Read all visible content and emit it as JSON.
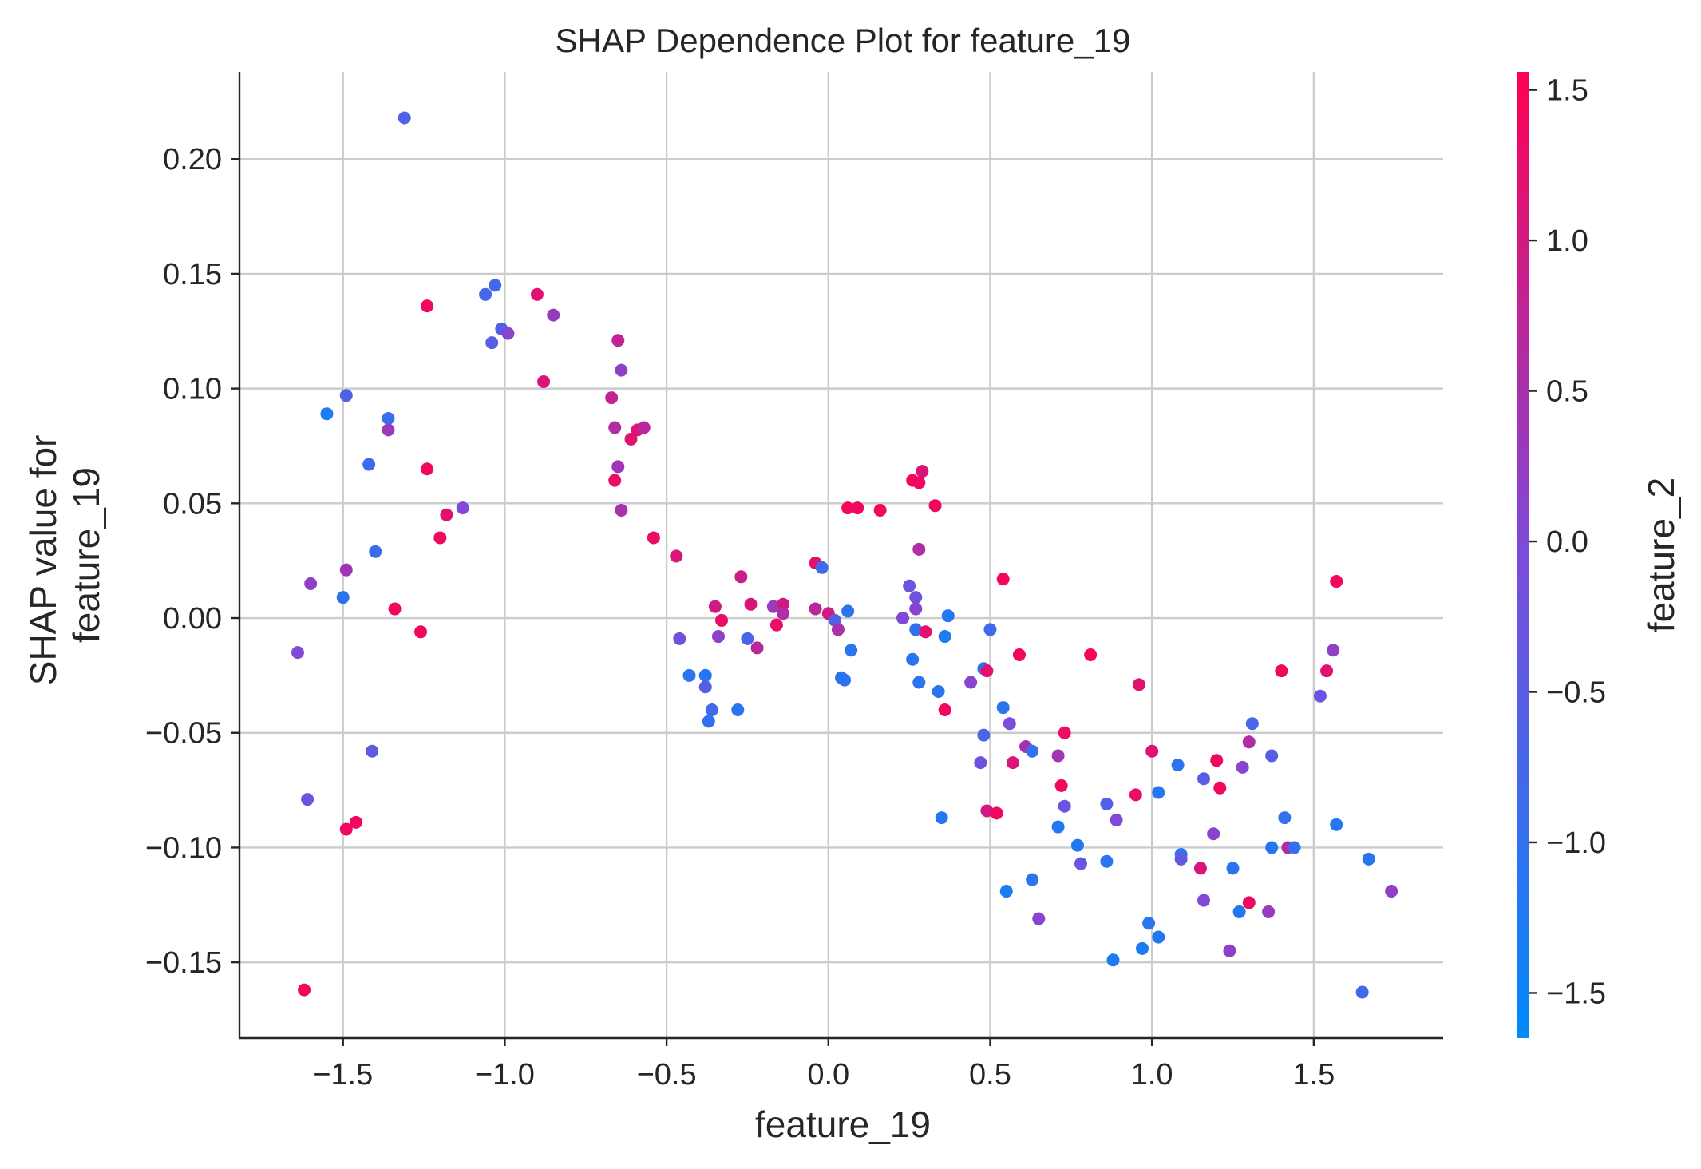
{
  "chart_data": {
    "type": "scatter",
    "title": "SHAP Dependence Plot for feature_19",
    "xlabel": "feature_19",
    "ylabel": [
      "SHAP value for",
      "feature_19"
    ],
    "xlim": [
      -1.82,
      1.9
    ],
    "ylim": [
      -0.183,
      0.238
    ],
    "xticks": [
      -1.5,
      -1.0,
      -0.5,
      0.0,
      0.5,
      1.0,
      1.5
    ],
    "xtick_labels": [
      "−1.5",
      "−1.0",
      "−0.5",
      "0.0",
      "0.5",
      "1.0",
      "1.5"
    ],
    "yticks": [
      -0.15,
      -0.1,
      -0.05,
      0.0,
      0.05,
      0.1,
      0.15,
      0.2
    ],
    "ytick_labels": [
      "−0.15",
      "−0.10",
      "−0.05",
      "0.00",
      "0.05",
      "0.10",
      "0.15",
      "0.20"
    ],
    "grid": true,
    "colorbar": {
      "label": "feature_2",
      "range": [
        -1.65,
        1.56
      ],
      "ticks": [
        -1.5,
        -1.0,
        -0.5,
        0.0,
        0.5,
        1.0,
        1.5
      ],
      "tick_labels": [
        "−1.5",
        "−1.0",
        "−0.5",
        "0.0",
        "0.5",
        "1.0",
        "1.5"
      ],
      "colors": [
        "#008afb",
        "#7c4bdb",
        "#ff0051"
      ]
    },
    "points": [
      {
        "x": -1.31,
        "y": 0.218,
        "c": -0.6
      },
      {
        "x": -1.62,
        "y": -0.162,
        "c": 1.4
      },
      {
        "x": -1.64,
        "y": -0.015,
        "c": 0.0
      },
      {
        "x": -1.61,
        "y": -0.079,
        "c": -0.3
      },
      {
        "x": -1.6,
        "y": 0.015,
        "c": 0.2
      },
      {
        "x": -1.55,
        "y": 0.089,
        "c": -1.3
      },
      {
        "x": -1.5,
        "y": 0.009,
        "c": -1.1
      },
      {
        "x": -1.49,
        "y": 0.097,
        "c": -0.6
      },
      {
        "x": -1.49,
        "y": 0.021,
        "c": 0.4
      },
      {
        "x": -1.49,
        "y": -0.092,
        "c": 1.4
      },
      {
        "x": -1.46,
        "y": -0.089,
        "c": 1.4
      },
      {
        "x": -1.42,
        "y": 0.067,
        "c": -0.8
      },
      {
        "x": -1.41,
        "y": -0.058,
        "c": -0.4
      },
      {
        "x": -1.4,
        "y": 0.029,
        "c": -0.9
      },
      {
        "x": -1.36,
        "y": 0.087,
        "c": -0.9
      },
      {
        "x": -1.36,
        "y": 0.082,
        "c": 0.3
      },
      {
        "x": -1.34,
        "y": 0.004,
        "c": 1.4
      },
      {
        "x": -1.26,
        "y": -0.006,
        "c": 1.4
      },
      {
        "x": -1.24,
        "y": 0.136,
        "c": 1.4
      },
      {
        "x": -1.24,
        "y": 0.065,
        "c": 1.4
      },
      {
        "x": -1.2,
        "y": 0.035,
        "c": 1.4
      },
      {
        "x": -1.18,
        "y": 0.045,
        "c": 1.2
      },
      {
        "x": -1.13,
        "y": 0.048,
        "c": 0.0
      },
      {
        "x": -1.06,
        "y": 0.141,
        "c": -0.8
      },
      {
        "x": -1.04,
        "y": 0.12,
        "c": -0.5
      },
      {
        "x": -1.03,
        "y": 0.145,
        "c": -0.8
      },
      {
        "x": -1.01,
        "y": 0.126,
        "c": -0.6
      },
      {
        "x": -0.99,
        "y": 0.124,
        "c": 0.1
      },
      {
        "x": -0.9,
        "y": 0.141,
        "c": 1.2
      },
      {
        "x": -0.88,
        "y": 0.103,
        "c": 1.1
      },
      {
        "x": -0.85,
        "y": 0.132,
        "c": 0.3
      },
      {
        "x": -0.67,
        "y": 0.096,
        "c": 0.8
      },
      {
        "x": -0.66,
        "y": 0.06,
        "c": 1.3
      },
      {
        "x": -0.66,
        "y": 0.083,
        "c": 0.6
      },
      {
        "x": -0.65,
        "y": 0.121,
        "c": 0.8
      },
      {
        "x": -0.65,
        "y": 0.066,
        "c": 0.4
      },
      {
        "x": -0.64,
        "y": 0.108,
        "c": 0.2
      },
      {
        "x": -0.64,
        "y": 0.047,
        "c": 0.5
      },
      {
        "x": -0.61,
        "y": 0.078,
        "c": 1.2
      },
      {
        "x": -0.59,
        "y": 0.082,
        "c": 1.1
      },
      {
        "x": -0.57,
        "y": 0.083,
        "c": 0.7
      },
      {
        "x": -0.54,
        "y": 0.035,
        "c": 1.3
      },
      {
        "x": -0.47,
        "y": 0.027,
        "c": 1.1
      },
      {
        "x": -0.46,
        "y": -0.009,
        "c": -0.2
      },
      {
        "x": -0.43,
        "y": -0.025,
        "c": -1.1
      },
      {
        "x": -0.38,
        "y": -0.025,
        "c": -1.2
      },
      {
        "x": -0.38,
        "y": -0.03,
        "c": -0.5
      },
      {
        "x": -0.37,
        "y": -0.045,
        "c": -1.0
      },
      {
        "x": -0.36,
        "y": -0.04,
        "c": -0.8
      },
      {
        "x": -0.35,
        "y": 0.005,
        "c": 1.0
      },
      {
        "x": -0.34,
        "y": -0.008,
        "c": 0.2
      },
      {
        "x": -0.33,
        "y": -0.001,
        "c": 1.3
      },
      {
        "x": -0.28,
        "y": -0.04,
        "c": -1.1
      },
      {
        "x": -0.27,
        "y": 0.018,
        "c": 0.9
      },
      {
        "x": -0.25,
        "y": -0.009,
        "c": -0.7
      },
      {
        "x": -0.24,
        "y": 0.006,
        "c": 1.1
      },
      {
        "x": -0.22,
        "y": -0.013,
        "c": 0.7
      },
      {
        "x": -0.17,
        "y": 0.005,
        "c": 0.3
      },
      {
        "x": -0.16,
        "y": -0.003,
        "c": 1.3
      },
      {
        "x": -0.14,
        "y": 0.006,
        "c": 1.0
      },
      {
        "x": -0.14,
        "y": 0.002,
        "c": 0.6
      },
      {
        "x": -0.04,
        "y": 0.004,
        "c": 0.7
      },
      {
        "x": -0.04,
        "y": 0.024,
        "c": 1.2
      },
      {
        "x": -0.02,
        "y": 0.022,
        "c": -0.8
      },
      {
        "x": 0.0,
        "y": 0.002,
        "c": 1.0
      },
      {
        "x": 0.02,
        "y": -0.001,
        "c": -0.6
      },
      {
        "x": 0.03,
        "y": -0.005,
        "c": 0.5
      },
      {
        "x": 0.04,
        "y": -0.026,
        "c": -1.1
      },
      {
        "x": 0.05,
        "y": -0.027,
        "c": -1.1
      },
      {
        "x": 0.06,
        "y": 0.048,
        "c": 1.4
      },
      {
        "x": 0.06,
        "y": 0.003,
        "c": -1.1
      },
      {
        "x": 0.07,
        "y": -0.014,
        "c": -1.1
      },
      {
        "x": 0.09,
        "y": 0.048,
        "c": 1.4
      },
      {
        "x": 0.16,
        "y": 0.047,
        "c": 1.4
      },
      {
        "x": 0.23,
        "y": 0.0,
        "c": 0.0
      },
      {
        "x": 0.25,
        "y": 0.014,
        "c": -0.3
      },
      {
        "x": 0.26,
        "y": -0.018,
        "c": -1.1
      },
      {
        "x": 0.26,
        "y": 0.06,
        "c": 1.4
      },
      {
        "x": 0.27,
        "y": 0.009,
        "c": -0.2
      },
      {
        "x": 0.27,
        "y": 0.004,
        "c": 0.1
      },
      {
        "x": 0.27,
        "y": -0.005,
        "c": -1.0
      },
      {
        "x": 0.28,
        "y": 0.059,
        "c": 1.4
      },
      {
        "x": 0.28,
        "y": 0.03,
        "c": 0.6
      },
      {
        "x": 0.28,
        "y": -0.028,
        "c": -1.1
      },
      {
        "x": 0.29,
        "y": 0.064,
        "c": 1.1
      },
      {
        "x": 0.3,
        "y": -0.006,
        "c": 1.2
      },
      {
        "x": 0.33,
        "y": 0.049,
        "c": 1.4
      },
      {
        "x": 0.34,
        "y": -0.032,
        "c": -1.1
      },
      {
        "x": 0.35,
        "y": -0.087,
        "c": -1.2
      },
      {
        "x": 0.36,
        "y": -0.04,
        "c": 1.4
      },
      {
        "x": 0.36,
        "y": -0.008,
        "c": -1.3
      },
      {
        "x": 0.37,
        "y": 0.001,
        "c": -1.2
      },
      {
        "x": 0.44,
        "y": -0.028,
        "c": 0.1
      },
      {
        "x": 0.47,
        "y": -0.063,
        "c": -0.2
      },
      {
        "x": 0.48,
        "y": -0.022,
        "c": -1.1
      },
      {
        "x": 0.48,
        "y": -0.051,
        "c": -0.7
      },
      {
        "x": 0.49,
        "y": -0.023,
        "c": 1.2
      },
      {
        "x": 0.49,
        "y": -0.084,
        "c": 1.0
      },
      {
        "x": 0.5,
        "y": -0.005,
        "c": -0.8
      },
      {
        "x": 0.52,
        "y": -0.085,
        "c": 1.4
      },
      {
        "x": 0.54,
        "y": 0.017,
        "c": 1.4
      },
      {
        "x": 0.54,
        "y": -0.039,
        "c": -1.1
      },
      {
        "x": 0.55,
        "y": -0.119,
        "c": -1.3
      },
      {
        "x": 0.56,
        "y": -0.046,
        "c": -0.1
      },
      {
        "x": 0.57,
        "y": -0.063,
        "c": 1.1
      },
      {
        "x": 0.59,
        "y": -0.016,
        "c": 1.4
      },
      {
        "x": 0.61,
        "y": -0.056,
        "c": 0.5
      },
      {
        "x": 0.63,
        "y": -0.058,
        "c": -1.0
      },
      {
        "x": 0.63,
        "y": -0.114,
        "c": -1.1
      },
      {
        "x": 0.65,
        "y": -0.131,
        "c": 0.1
      },
      {
        "x": 0.71,
        "y": -0.06,
        "c": 0.4
      },
      {
        "x": 0.71,
        "y": -0.091,
        "c": -1.2
      },
      {
        "x": 0.72,
        "y": -0.073,
        "c": 1.4
      },
      {
        "x": 0.73,
        "y": -0.05,
        "c": 1.3
      },
      {
        "x": 0.73,
        "y": -0.082,
        "c": -0.3
      },
      {
        "x": 0.77,
        "y": -0.099,
        "c": -1.2
      },
      {
        "x": 0.78,
        "y": -0.107,
        "c": -0.3
      },
      {
        "x": 0.81,
        "y": -0.016,
        "c": 1.4
      },
      {
        "x": 0.86,
        "y": -0.081,
        "c": -0.6
      },
      {
        "x": 0.86,
        "y": -0.106,
        "c": -1.1
      },
      {
        "x": 0.88,
        "y": -0.149,
        "c": -1.3
      },
      {
        "x": 0.89,
        "y": -0.088,
        "c": 0.0
      },
      {
        "x": 0.95,
        "y": -0.077,
        "c": 1.3
      },
      {
        "x": 0.96,
        "y": -0.029,
        "c": 1.2
      },
      {
        "x": 0.97,
        "y": -0.144,
        "c": -1.3
      },
      {
        "x": 0.99,
        "y": -0.133,
        "c": -1.1
      },
      {
        "x": 1.0,
        "y": -0.058,
        "c": 1.2
      },
      {
        "x": 1.02,
        "y": -0.139,
        "c": -1.2
      },
      {
        "x": 1.02,
        "y": -0.076,
        "c": -1.2
      },
      {
        "x": 1.08,
        "y": -0.064,
        "c": -1.1
      },
      {
        "x": 1.09,
        "y": -0.103,
        "c": -1.1
      },
      {
        "x": 1.09,
        "y": -0.105,
        "c": -0.4
      },
      {
        "x": 1.15,
        "y": -0.109,
        "c": 1.1
      },
      {
        "x": 1.16,
        "y": -0.07,
        "c": -0.5
      },
      {
        "x": 1.16,
        "y": -0.123,
        "c": 0.0
      },
      {
        "x": 1.19,
        "y": -0.094,
        "c": 0.1
      },
      {
        "x": 1.2,
        "y": -0.062,
        "c": 1.4
      },
      {
        "x": 1.21,
        "y": -0.074,
        "c": 1.4
      },
      {
        "x": 1.24,
        "y": -0.145,
        "c": 0.2
      },
      {
        "x": 1.25,
        "y": -0.109,
        "c": -1.1
      },
      {
        "x": 1.27,
        "y": -0.128,
        "c": -1.2
      },
      {
        "x": 1.28,
        "y": -0.065,
        "c": 0.1
      },
      {
        "x": 1.3,
        "y": -0.124,
        "c": 1.4
      },
      {
        "x": 1.3,
        "y": -0.054,
        "c": 0.6
      },
      {
        "x": 1.31,
        "y": -0.046,
        "c": -0.7
      },
      {
        "x": 1.36,
        "y": -0.128,
        "c": 0.3
      },
      {
        "x": 1.37,
        "y": -0.06,
        "c": -0.5
      },
      {
        "x": 1.37,
        "y": -0.1,
        "c": -1.2
      },
      {
        "x": 1.4,
        "y": -0.023,
        "c": 1.4
      },
      {
        "x": 1.41,
        "y": -0.087,
        "c": -1.0
      },
      {
        "x": 1.42,
        "y": -0.1,
        "c": 0.6
      },
      {
        "x": 1.44,
        "y": -0.1,
        "c": -1.0
      },
      {
        "x": 1.52,
        "y": -0.034,
        "c": -0.3
      },
      {
        "x": 1.54,
        "y": -0.023,
        "c": 1.2
      },
      {
        "x": 1.56,
        "y": -0.014,
        "c": 0.2
      },
      {
        "x": 1.57,
        "y": 0.016,
        "c": 1.4
      },
      {
        "x": 1.57,
        "y": -0.09,
        "c": -1.2
      },
      {
        "x": 1.65,
        "y": -0.163,
        "c": -0.8
      },
      {
        "x": 1.67,
        "y": -0.105,
        "c": -1.1
      },
      {
        "x": 1.74,
        "y": -0.119,
        "c": 0.2
      }
    ]
  }
}
